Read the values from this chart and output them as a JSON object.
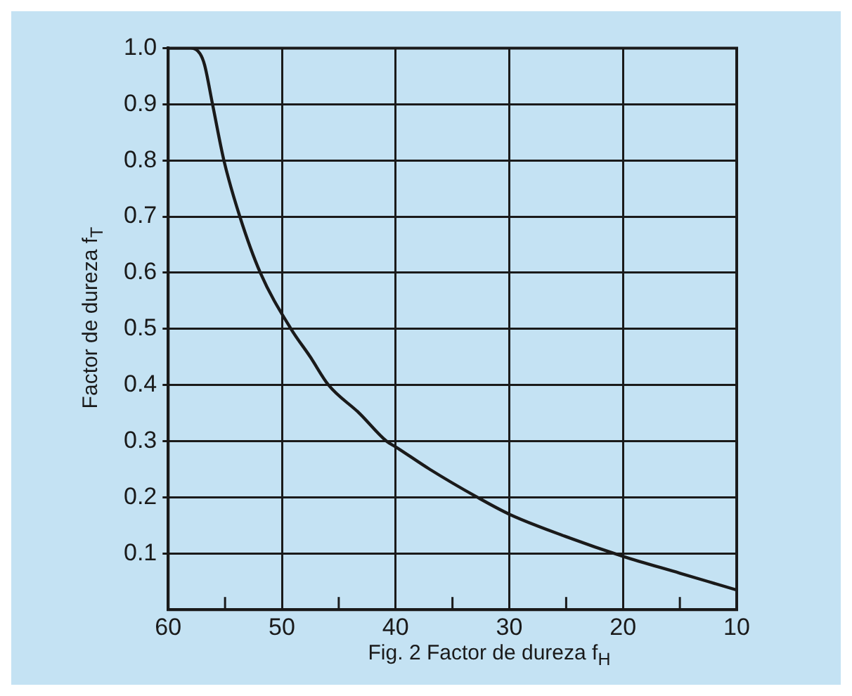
{
  "chart_data": {
    "type": "line",
    "xlabel": "Fig. 2 Factor de dureza f$_{H}$",
    "ylabel": "Factor de dureza f$_{T}$",
    "x": [
      60,
      58,
      57.2,
      56.8,
      56.1,
      55.1,
      53.7,
      51.9,
      49.2,
      47.5,
      45.9,
      43.2,
      40.8,
      40,
      37,
      32.8,
      30,
      25,
      20,
      15,
      10
    ],
    "series": [
      {
        "color": "#1a1a1a",
        "values": [
          1.0,
          1.0,
          0.99,
          0.97,
          0.9,
          0.8,
          0.7,
          0.6,
          0.5,
          0.45,
          0.4,
          0.35,
          0.3,
          0.29,
          0.25,
          0.2,
          0.17,
          0.13,
          0.095,
          0.065,
          0.035
        ]
      }
    ],
    "xlim": [
      60,
      10
    ],
    "xticks": [
      60,
      {
        "value": 55,
        "label": null
      },
      50,
      {
        "value": 45,
        "label": null
      },
      40,
      {
        "value": 35,
        "label": null
      },
      30,
      {
        "value": 25,
        "label": null
      },
      20,
      {
        "value": 15,
        "label": null
      },
      10
    ],
    "ylim": [
      0,
      1.0
    ],
    "yticks": [
      {
        "value": 0.1,
        "label": "0.1"
      },
      {
        "value": 0.2,
        "label": "0.2"
      },
      {
        "value": 0.3,
        "label": "0.3"
      },
      {
        "value": 0.4,
        "label": "0.4"
      },
      {
        "value": 0.5,
        "label": "0.5"
      },
      {
        "value": 0.6,
        "label": "0.6"
      },
      {
        "value": 0.7,
        "label": "0.7"
      },
      {
        "value": 0.8,
        "label": "0.8"
      },
      {
        "value": 0.9,
        "label": "0.9"
      },
      {
        "value": 1.0,
        "label": "1.0"
      }
    ],
    "grid": true,
    "marker": "none",
    "line_style": "solid"
  }
}
